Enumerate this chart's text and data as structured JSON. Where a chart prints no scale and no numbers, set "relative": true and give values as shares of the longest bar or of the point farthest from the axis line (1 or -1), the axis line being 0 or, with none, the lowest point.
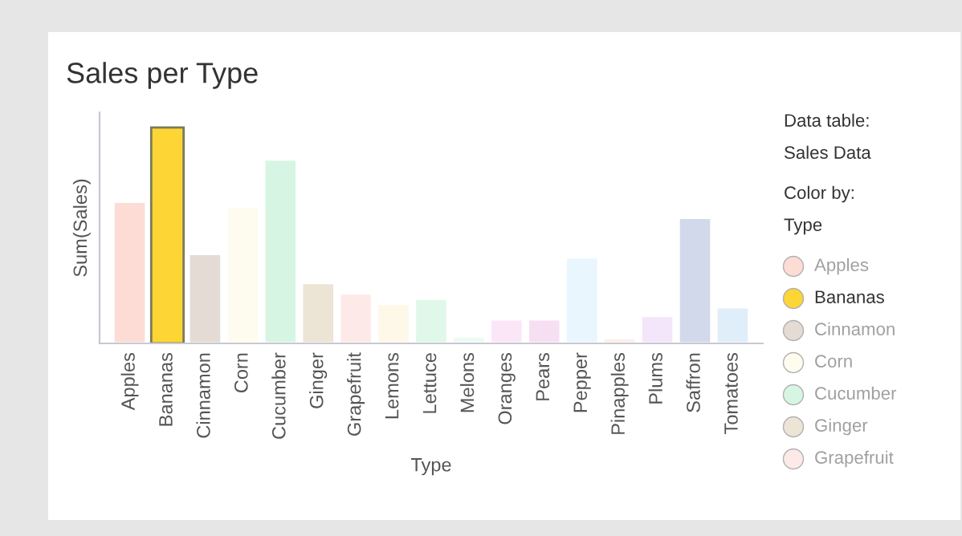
{
  "chart_data": {
    "type": "bar",
    "title": "Sales per Type",
    "xlabel": "Type",
    "ylabel": "Sum(Sales)",
    "relative": true,
    "categories": [
      "Apples",
      "Bananas",
      "Cinnamon",
      "Corn",
      "Cucumber",
      "Ginger",
      "Grapefruit",
      "Lemons",
      "Lettuce",
      "Melons",
      "Oranges",
      "Pears",
      "Pepper",
      "Pinapples",
      "Plums",
      "Saffron",
      "Tomatoes"
    ],
    "values": [
      0.655,
      1,
      0.414,
      0.634,
      0.851,
      0.279,
      0.231,
      0.183,
      0.207,
      0.032,
      0.111,
      0.111,
      0.398,
      0.024,
      0.127,
      0.581,
      0.167
    ],
    "colors": [
      "#fddcd6",
      "#fdd535",
      "#e3dbd4",
      "#fefcee",
      "#d6f6e3",
      "#ece4d4",
      "#fdeae8",
      "#fdf8e8",
      "#dff8e9",
      "#ecfbf3",
      "#fbe6f8",
      "#f6dff3",
      "#e9f6fd",
      "#fcefe8",
      "#f3e6fb",
      "#d2d9eb",
      "#e0eef9"
    ],
    "annotations": [
      "Data table:",
      "Sales Data",
      "Color by:"
    ],
    "legend_title": "Type",
    "grid": false
  }
}
